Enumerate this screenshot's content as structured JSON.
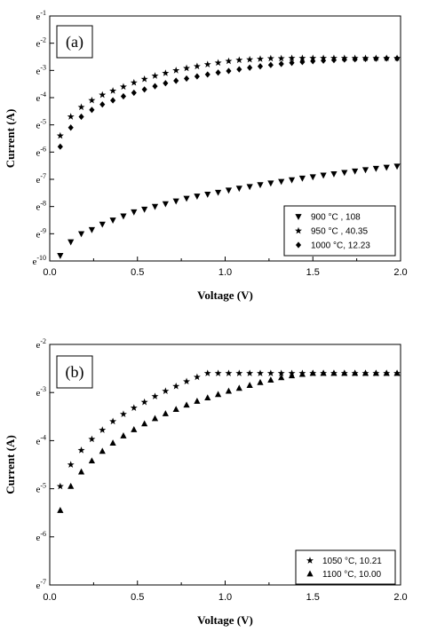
{
  "chart_data": [
    {
      "type": "scatter",
      "panel_label": "(a)",
      "xlabel": "Voltage (V)",
      "ylabel": "Current (A)",
      "xlim": [
        0.0,
        2.0
      ],
      "xticks": [
        "0.0",
        "0.5",
        "1.0",
        "1.5",
        "2.0"
      ],
      "yscale": "log",
      "ylim_exponent": [
        -10,
        -1
      ],
      "yticks": [
        {
          "exp": -1,
          "base": "e",
          "sup": "-1"
        },
        {
          "exp": -2,
          "base": "e",
          "sup": "-2"
        },
        {
          "exp": -3,
          "base": "e",
          "sup": "-3"
        },
        {
          "exp": -4,
          "base": "e",
          "sup": "-4"
        },
        {
          "exp": -5,
          "base": "e",
          "sup": "-5"
        },
        {
          "exp": -6,
          "base": "e",
          "sup": "-6"
        },
        {
          "exp": -7,
          "base": "e",
          "sup": "-7"
        },
        {
          "exp": -8,
          "base": "e",
          "sup": "-8"
        },
        {
          "exp": -9,
          "base": "e",
          "sup": "-9"
        },
        {
          "exp": -10,
          "base": "e",
          "sup": "-10"
        }
      ],
      "legend_position": "bottom-right",
      "series": [
        {
          "name": "900 °C , 108",
          "marker": "triangle-down",
          "x": [
            0.06,
            0.12,
            0.18,
            0.24,
            0.3,
            0.36,
            0.42,
            0.48,
            0.54,
            0.6,
            0.66,
            0.72,
            0.78,
            0.84,
            0.9,
            0.96,
            1.02,
            1.08,
            1.14,
            1.2,
            1.26,
            1.32,
            1.38,
            1.44,
            1.5,
            1.56,
            1.62,
            1.68,
            1.74,
            1.8,
            1.86,
            1.92,
            1.98
          ],
          "y_exponent": [
            -9.8,
            -9.3,
            -9.0,
            -8.85,
            -8.65,
            -8.5,
            -8.35,
            -8.2,
            -8.1,
            -8.0,
            -7.9,
            -7.8,
            -7.7,
            -7.62,
            -7.55,
            -7.48,
            -7.4,
            -7.33,
            -7.27,
            -7.2,
            -7.14,
            -7.08,
            -7.02,
            -6.96,
            -6.91,
            -6.85,
            -6.8,
            -6.75,
            -6.7,
            -6.65,
            -6.6,
            -6.56,
            -6.52
          ]
        },
        {
          "name": "950 °C , 40.35",
          "marker": "star",
          "x": [
            0.06,
            0.12,
            0.18,
            0.24,
            0.3,
            0.36,
            0.42,
            0.48,
            0.54,
            0.6,
            0.66,
            0.72,
            0.78,
            0.84,
            0.9,
            0.96,
            1.02,
            1.08,
            1.14,
            1.2,
            1.26,
            1.32,
            1.38,
            1.44,
            1.5,
            1.56,
            1.62,
            1.68,
            1.74,
            1.8,
            1.86,
            1.92,
            1.98
          ],
          "y_exponent": [
            -5.4,
            -4.7,
            -4.35,
            -4.1,
            -3.9,
            -3.75,
            -3.6,
            -3.45,
            -3.32,
            -3.2,
            -3.1,
            -3.0,
            -2.92,
            -2.85,
            -2.78,
            -2.72,
            -2.66,
            -2.62,
            -2.6,
            -2.58,
            -2.56,
            -2.56,
            -2.55,
            -2.55,
            -2.55,
            -2.55,
            -2.55,
            -2.55,
            -2.55,
            -2.55,
            -2.55,
            -2.55,
            -2.55
          ]
        },
        {
          "name": "1000 °C, 12.23",
          "marker": "diamond",
          "x": [
            0.06,
            0.12,
            0.18,
            0.24,
            0.3,
            0.36,
            0.42,
            0.48,
            0.54,
            0.6,
            0.66,
            0.72,
            0.78,
            0.84,
            0.9,
            0.96,
            1.02,
            1.08,
            1.14,
            1.2,
            1.26,
            1.32,
            1.38,
            1.44,
            1.5,
            1.56,
            1.62,
            1.68,
            1.74,
            1.8,
            1.86,
            1.92,
            1.98
          ],
          "y_exponent": [
            -5.8,
            -5.1,
            -4.7,
            -4.45,
            -4.25,
            -4.1,
            -3.95,
            -3.82,
            -3.7,
            -3.58,
            -3.47,
            -3.38,
            -3.3,
            -3.22,
            -3.15,
            -3.08,
            -3.02,
            -2.96,
            -2.9,
            -2.85,
            -2.8,
            -2.76,
            -2.72,
            -2.69,
            -2.66,
            -2.64,
            -2.62,
            -2.6,
            -2.59,
            -2.58,
            -2.57,
            -2.56,
            -2.56
          ]
        }
      ]
    },
    {
      "type": "scatter",
      "panel_label": "(b)",
      "xlabel": "Voltage (V)",
      "ylabel": "Current (A)",
      "xlim": [
        0.0,
        2.0
      ],
      "xticks": [
        "0.0",
        "0.5",
        "1.0",
        "1.5",
        "2.0"
      ],
      "yscale": "log",
      "ylim_exponent": [
        -7,
        -2
      ],
      "yticks": [
        {
          "exp": -2,
          "base": "e",
          "sup": "-2"
        },
        {
          "exp": -3,
          "base": "e",
          "sup": "-3"
        },
        {
          "exp": -4,
          "base": "e",
          "sup": "-4"
        },
        {
          "exp": -5,
          "base": "e",
          "sup": "-5"
        },
        {
          "exp": -6,
          "base": "e",
          "sup": "-6"
        },
        {
          "exp": -7,
          "base": "e",
          "sup": "-7"
        }
      ],
      "legend_position": "bottom-right",
      "series": [
        {
          "name": "1050 °C, 10.21",
          "marker": "star",
          "x": [
            0.06,
            0.12,
            0.18,
            0.24,
            0.3,
            0.36,
            0.42,
            0.48,
            0.54,
            0.6,
            0.66,
            0.72,
            0.78,
            0.84,
            0.9,
            0.96,
            1.02,
            1.08,
            1.14,
            1.2,
            1.26,
            1.32,
            1.38,
            1.44,
            1.5,
            1.56,
            1.62,
            1.68,
            1.74,
            1.8,
            1.86,
            1.92,
            1.98
          ],
          "y_exponent": [
            -4.95,
            -4.5,
            -4.2,
            -3.97,
            -3.78,
            -3.6,
            -3.45,
            -3.32,
            -3.2,
            -3.08,
            -2.97,
            -2.87,
            -2.77,
            -2.68,
            -2.6,
            -2.6,
            -2.6,
            -2.6,
            -2.6,
            -2.6,
            -2.6,
            -2.6,
            -2.6,
            -2.6,
            -2.6,
            -2.6,
            -2.6,
            -2.6,
            -2.6,
            -2.6,
            -2.6,
            -2.6,
            -2.6
          ]
        },
        {
          "name": "1100 °C, 10.00",
          "marker": "triangle-up",
          "x": [
            0.06,
            0.12,
            0.18,
            0.24,
            0.3,
            0.36,
            0.42,
            0.48,
            0.54,
            0.6,
            0.66,
            0.72,
            0.78,
            0.84,
            0.9,
            0.96,
            1.02,
            1.08,
            1.14,
            1.2,
            1.26,
            1.32,
            1.38,
            1.44,
            1.5,
            1.56,
            1.62,
            1.68,
            1.74,
            1.8,
            1.86,
            1.92,
            1.98
          ],
          "y_exponent": [
            -5.45,
            -4.95,
            -4.65,
            -4.42,
            -4.22,
            -4.05,
            -3.9,
            -3.77,
            -3.65,
            -3.54,
            -3.44,
            -3.35,
            -3.26,
            -3.18,
            -3.11,
            -3.04,
            -2.97,
            -2.91,
            -2.85,
            -2.79,
            -2.74,
            -2.69,
            -2.65,
            -2.62,
            -2.6,
            -2.6,
            -2.6,
            -2.6,
            -2.6,
            -2.6,
            -2.6,
            -2.6,
            -2.6
          ]
        }
      ]
    }
  ]
}
